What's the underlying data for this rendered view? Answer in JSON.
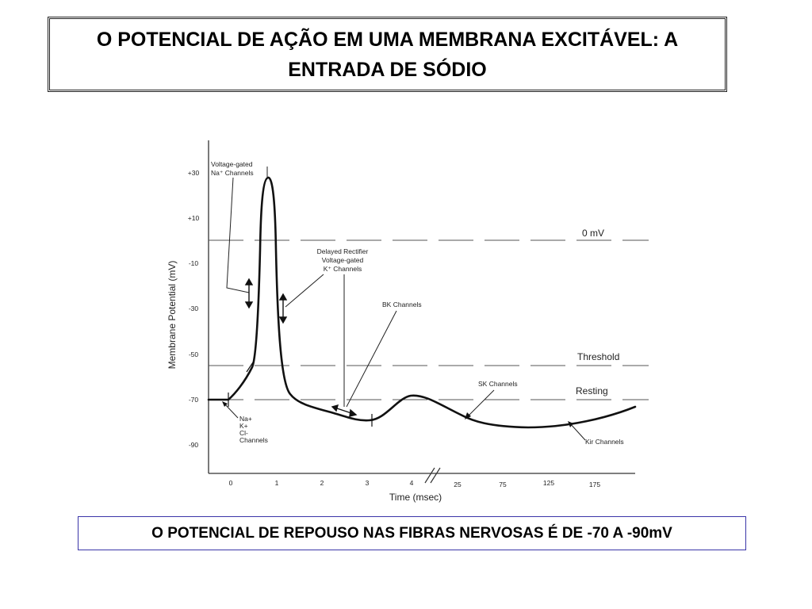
{
  "header": {
    "title": "O POTENCIAL DE AÇÃO EM UMA MEMBRANA EXCITÁVEL: A ENTRADA DE SÓDIO"
  },
  "figure": {
    "ylabel": "Membrane Potential (mV)",
    "xlabel": "Time (msec)",
    "y_ticks": [
      "+30",
      "+10",
      "-10",
      "-30",
      "-50",
      "-70",
      "-90"
    ],
    "x_ticks": [
      "0",
      "1",
      "2",
      "3",
      "4",
      "25",
      "75",
      "125",
      "175"
    ],
    "reference_lines": {
      "zero": "0 mV",
      "threshold": "Threshold",
      "resting": "Resting"
    },
    "annotations": {
      "na_channels_line1": "Voltage-gated",
      "na_channels_line2": "Na⁺ Channels",
      "delayed_rectifier_line1": "Delayed Rectifier",
      "delayed_rectifier_line2": "Voltage-gated",
      "delayed_rectifier_line3": "K⁺ Channels",
      "bk_channels": "BK Channels",
      "sk_channels": "SK Channels",
      "kir_channels": "Kir Channels",
      "leak_na": "Na+",
      "leak_k": "K+",
      "leak_cl": "Cl-",
      "leak_channels": "Channels"
    }
  },
  "caption": {
    "text": "O POTENCIAL DE REPOUSO NAS FIBRAS NERVOSAS É DE -70 A -90mV"
  }
}
